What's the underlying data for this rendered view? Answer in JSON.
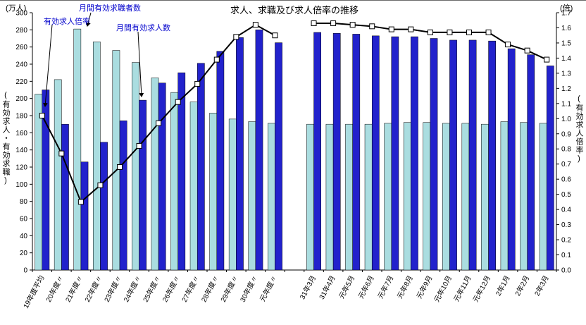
{
  "title": "求人、求職及び求人倍率の推移",
  "units": {
    "left": "(万人)",
    "right": "(倍)"
  },
  "axis_labels": {
    "left": "(有効求人・有効求職)",
    "right": "(有効求人倍率)"
  },
  "annotations": {
    "seekers": "月間有効求職者数",
    "rate": "有効求人倍率",
    "offers": "月間有効求人数"
  },
  "colors": {
    "seekers_bar": "#aadde0",
    "offers_bar": "#2222cc",
    "line": "#000000",
    "marker_fill": "#ffffff",
    "annotation_text": "#0000cc"
  },
  "chart_data": {
    "type": "bar+line",
    "categories": [
      "19年度平均",
      "20年度〃",
      "21年度〃",
      "22年度〃",
      "23年度〃",
      "24年度〃",
      "25年度〃",
      "26年度〃",
      "27年度〃",
      "28年度〃",
      "29年度〃",
      "30年度〃",
      "元年度〃",
      "",
      "31年3月",
      "31年4月",
      "元年5月",
      "元年6月",
      "元年7月",
      "元年8月",
      "元年9月",
      "元年10月",
      "元年11月",
      "元年12月",
      "2年1月",
      "2年2月",
      "2年3月"
    ],
    "series": [
      {
        "name": "月間有効求職者数",
        "type": "bar",
        "axis": "left",
        "values": [
          205,
          222,
          281,
          266,
          256,
          242,
          224,
          207,
          196,
          183,
          176,
          173,
          171,
          null,
          170,
          170,
          170,
          170,
          171,
          172,
          172,
          171,
          171,
          170,
          173,
          172,
          171
        ]
      },
      {
        "name": "月間有効求人数",
        "type": "bar",
        "axis": "left",
        "values": [
          210,
          170,
          126,
          149,
          174,
          198,
          218,
          230,
          241,
          255,
          271,
          280,
          265,
          null,
          277,
          276,
          275,
          273,
          272,
          272,
          270,
          268,
          268,
          267,
          258,
          251,
          238
        ]
      },
      {
        "name": "有効求人倍率",
        "type": "line",
        "axis": "right",
        "values": [
          1.02,
          0.77,
          0.45,
          0.56,
          0.68,
          0.82,
          0.97,
          1.11,
          1.23,
          1.39,
          1.54,
          1.62,
          1.55,
          null,
          1.63,
          1.63,
          1.62,
          1.61,
          1.59,
          1.59,
          1.57,
          1.57,
          1.57,
          1.57,
          1.49,
          1.45,
          1.39
        ]
      }
    ],
    "left_axis": {
      "min": 0,
      "max": 300,
      "step": 20
    },
    "right_axis": {
      "min": 0,
      "max": 1.7,
      "step": 0.1
    },
    "grid": false,
    "legend_position": "annotations-top-left"
  }
}
